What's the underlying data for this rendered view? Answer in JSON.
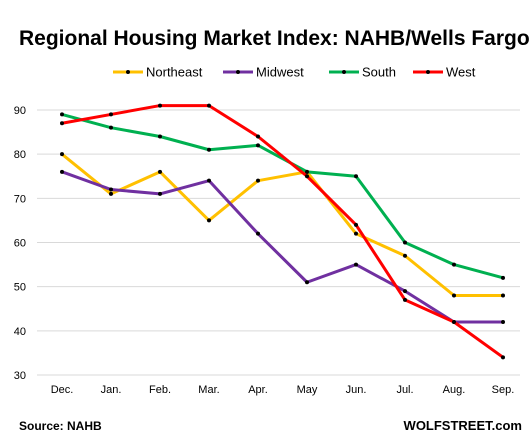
{
  "chart_data": {
    "type": "line",
    "title": "Regional Housing Market Index: NAHB/Wells Fargo",
    "categories": [
      "Dec.",
      "Jan.",
      "Feb.",
      "Mar.",
      "Apr.",
      "May",
      "Jun.",
      "Jul.",
      "Aug.",
      "Sep."
    ],
    "ylim": [
      30,
      90
    ],
    "yticks": [
      30,
      40,
      50,
      60,
      70,
      80,
      90
    ],
    "grid": true,
    "legend_position": "top",
    "series": [
      {
        "name": "Northeast",
        "color": "#ffc000",
        "values": [
          80,
          71,
          76,
          65,
          74,
          76,
          62,
          57,
          48,
          48
        ]
      },
      {
        "name": "Midwest",
        "color": "#7030a0",
        "values": [
          76,
          72,
          71,
          74,
          62,
          51,
          55,
          49,
          42,
          42
        ]
      },
      {
        "name": "South",
        "color": "#00b050",
        "values": [
          89,
          86,
          84,
          81,
          82,
          76,
          75,
          60,
          55,
          52
        ]
      },
      {
        "name": "West",
        "color": "#ff0000",
        "values": [
          87,
          89,
          91,
          91,
          84,
          75,
          64,
          47,
          42,
          34
        ]
      }
    ]
  },
  "footer": {
    "source": "Source: NAHB",
    "brand": "WOLFSTREET.com"
  }
}
